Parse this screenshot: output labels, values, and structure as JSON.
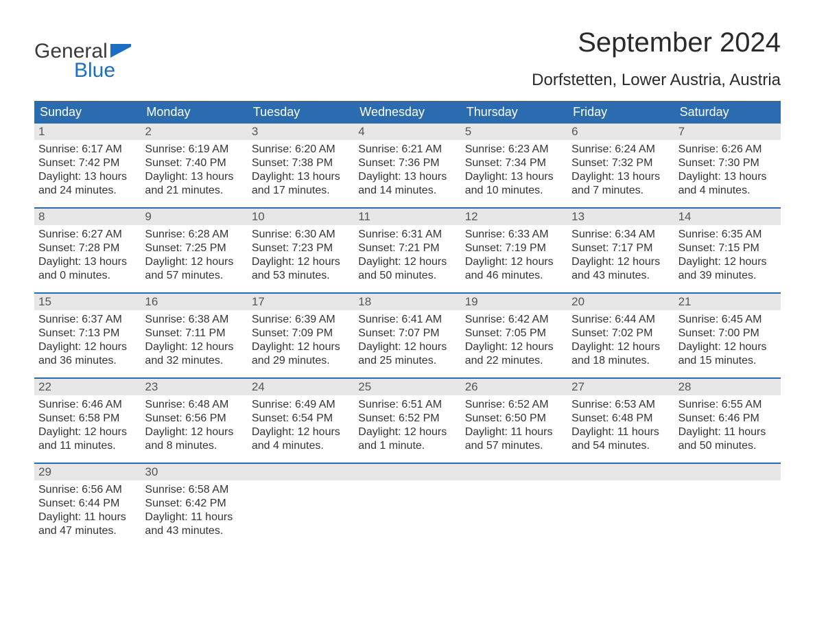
{
  "logo": {
    "word1": "General",
    "word2": "Blue",
    "flag_color": "#1b6ec2",
    "text_color_1": "#3a3a3a",
    "text_color_2": "#1b6ec2"
  },
  "title": "September 2024",
  "location": "Dorfstetten, Lower Austria, Austria",
  "colors": {
    "header_bg": "#2b6cb0",
    "header_text": "#ffffff",
    "daynum_bg": "#e7e7e7",
    "daynum_text": "#555555",
    "body_text": "#333333",
    "week_border": "#2b6cb0",
    "page_bg": "#ffffff"
  },
  "typography": {
    "title_fontsize": 40,
    "location_fontsize": 24,
    "dow_fontsize": 18,
    "daynum_fontsize": 17,
    "body_fontsize": 16
  },
  "layout": {
    "columns": 7,
    "rows": 5
  },
  "dow": [
    "Sunday",
    "Monday",
    "Tuesday",
    "Wednesday",
    "Thursday",
    "Friday",
    "Saturday"
  ],
  "weeks": [
    [
      {
        "n": "1",
        "sunrise": "Sunrise: 6:17 AM",
        "sunset": "Sunset: 7:42 PM",
        "d1": "Daylight: 13 hours",
        "d2": "and 24 minutes."
      },
      {
        "n": "2",
        "sunrise": "Sunrise: 6:19 AM",
        "sunset": "Sunset: 7:40 PM",
        "d1": "Daylight: 13 hours",
        "d2": "and 21 minutes."
      },
      {
        "n": "3",
        "sunrise": "Sunrise: 6:20 AM",
        "sunset": "Sunset: 7:38 PM",
        "d1": "Daylight: 13 hours",
        "d2": "and 17 minutes."
      },
      {
        "n": "4",
        "sunrise": "Sunrise: 6:21 AM",
        "sunset": "Sunset: 7:36 PM",
        "d1": "Daylight: 13 hours",
        "d2": "and 14 minutes."
      },
      {
        "n": "5",
        "sunrise": "Sunrise: 6:23 AM",
        "sunset": "Sunset: 7:34 PM",
        "d1": "Daylight: 13 hours",
        "d2": "and 10 minutes."
      },
      {
        "n": "6",
        "sunrise": "Sunrise: 6:24 AM",
        "sunset": "Sunset: 7:32 PM",
        "d1": "Daylight: 13 hours",
        "d2": "and 7 minutes."
      },
      {
        "n": "7",
        "sunrise": "Sunrise: 6:26 AM",
        "sunset": "Sunset: 7:30 PM",
        "d1": "Daylight: 13 hours",
        "d2": "and 4 minutes."
      }
    ],
    [
      {
        "n": "8",
        "sunrise": "Sunrise: 6:27 AM",
        "sunset": "Sunset: 7:28 PM",
        "d1": "Daylight: 13 hours",
        "d2": "and 0 minutes."
      },
      {
        "n": "9",
        "sunrise": "Sunrise: 6:28 AM",
        "sunset": "Sunset: 7:25 PM",
        "d1": "Daylight: 12 hours",
        "d2": "and 57 minutes."
      },
      {
        "n": "10",
        "sunrise": "Sunrise: 6:30 AM",
        "sunset": "Sunset: 7:23 PM",
        "d1": "Daylight: 12 hours",
        "d2": "and 53 minutes."
      },
      {
        "n": "11",
        "sunrise": "Sunrise: 6:31 AM",
        "sunset": "Sunset: 7:21 PM",
        "d1": "Daylight: 12 hours",
        "d2": "and 50 minutes."
      },
      {
        "n": "12",
        "sunrise": "Sunrise: 6:33 AM",
        "sunset": "Sunset: 7:19 PM",
        "d1": "Daylight: 12 hours",
        "d2": "and 46 minutes."
      },
      {
        "n": "13",
        "sunrise": "Sunrise: 6:34 AM",
        "sunset": "Sunset: 7:17 PM",
        "d1": "Daylight: 12 hours",
        "d2": "and 43 minutes."
      },
      {
        "n": "14",
        "sunrise": "Sunrise: 6:35 AM",
        "sunset": "Sunset: 7:15 PM",
        "d1": "Daylight: 12 hours",
        "d2": "and 39 minutes."
      }
    ],
    [
      {
        "n": "15",
        "sunrise": "Sunrise: 6:37 AM",
        "sunset": "Sunset: 7:13 PM",
        "d1": "Daylight: 12 hours",
        "d2": "and 36 minutes."
      },
      {
        "n": "16",
        "sunrise": "Sunrise: 6:38 AM",
        "sunset": "Sunset: 7:11 PM",
        "d1": "Daylight: 12 hours",
        "d2": "and 32 minutes."
      },
      {
        "n": "17",
        "sunrise": "Sunrise: 6:39 AM",
        "sunset": "Sunset: 7:09 PM",
        "d1": "Daylight: 12 hours",
        "d2": "and 29 minutes."
      },
      {
        "n": "18",
        "sunrise": "Sunrise: 6:41 AM",
        "sunset": "Sunset: 7:07 PM",
        "d1": "Daylight: 12 hours",
        "d2": "and 25 minutes."
      },
      {
        "n": "19",
        "sunrise": "Sunrise: 6:42 AM",
        "sunset": "Sunset: 7:05 PM",
        "d1": "Daylight: 12 hours",
        "d2": "and 22 minutes."
      },
      {
        "n": "20",
        "sunrise": "Sunrise: 6:44 AM",
        "sunset": "Sunset: 7:02 PM",
        "d1": "Daylight: 12 hours",
        "d2": "and 18 minutes."
      },
      {
        "n": "21",
        "sunrise": "Sunrise: 6:45 AM",
        "sunset": "Sunset: 7:00 PM",
        "d1": "Daylight: 12 hours",
        "d2": "and 15 minutes."
      }
    ],
    [
      {
        "n": "22",
        "sunrise": "Sunrise: 6:46 AM",
        "sunset": "Sunset: 6:58 PM",
        "d1": "Daylight: 12 hours",
        "d2": "and 11 minutes."
      },
      {
        "n": "23",
        "sunrise": "Sunrise: 6:48 AM",
        "sunset": "Sunset: 6:56 PM",
        "d1": "Daylight: 12 hours",
        "d2": "and 8 minutes."
      },
      {
        "n": "24",
        "sunrise": "Sunrise: 6:49 AM",
        "sunset": "Sunset: 6:54 PM",
        "d1": "Daylight: 12 hours",
        "d2": "and 4 minutes."
      },
      {
        "n": "25",
        "sunrise": "Sunrise: 6:51 AM",
        "sunset": "Sunset: 6:52 PM",
        "d1": "Daylight: 12 hours",
        "d2": "and 1 minute."
      },
      {
        "n": "26",
        "sunrise": "Sunrise: 6:52 AM",
        "sunset": "Sunset: 6:50 PM",
        "d1": "Daylight: 11 hours",
        "d2": "and 57 minutes."
      },
      {
        "n": "27",
        "sunrise": "Sunrise: 6:53 AM",
        "sunset": "Sunset: 6:48 PM",
        "d1": "Daylight: 11 hours",
        "d2": "and 54 minutes."
      },
      {
        "n": "28",
        "sunrise": "Sunrise: 6:55 AM",
        "sunset": "Sunset: 6:46 PM",
        "d1": "Daylight: 11 hours",
        "d2": "and 50 minutes."
      }
    ],
    [
      {
        "n": "29",
        "sunrise": "Sunrise: 6:56 AM",
        "sunset": "Sunset: 6:44 PM",
        "d1": "Daylight: 11 hours",
        "d2": "and 47 minutes."
      },
      {
        "n": "30",
        "sunrise": "Sunrise: 6:58 AM",
        "sunset": "Sunset: 6:42 PM",
        "d1": "Daylight: 11 hours",
        "d2": "and 43 minutes."
      },
      {
        "empty": true
      },
      {
        "empty": true
      },
      {
        "empty": true
      },
      {
        "empty": true
      },
      {
        "empty": true
      }
    ]
  ]
}
